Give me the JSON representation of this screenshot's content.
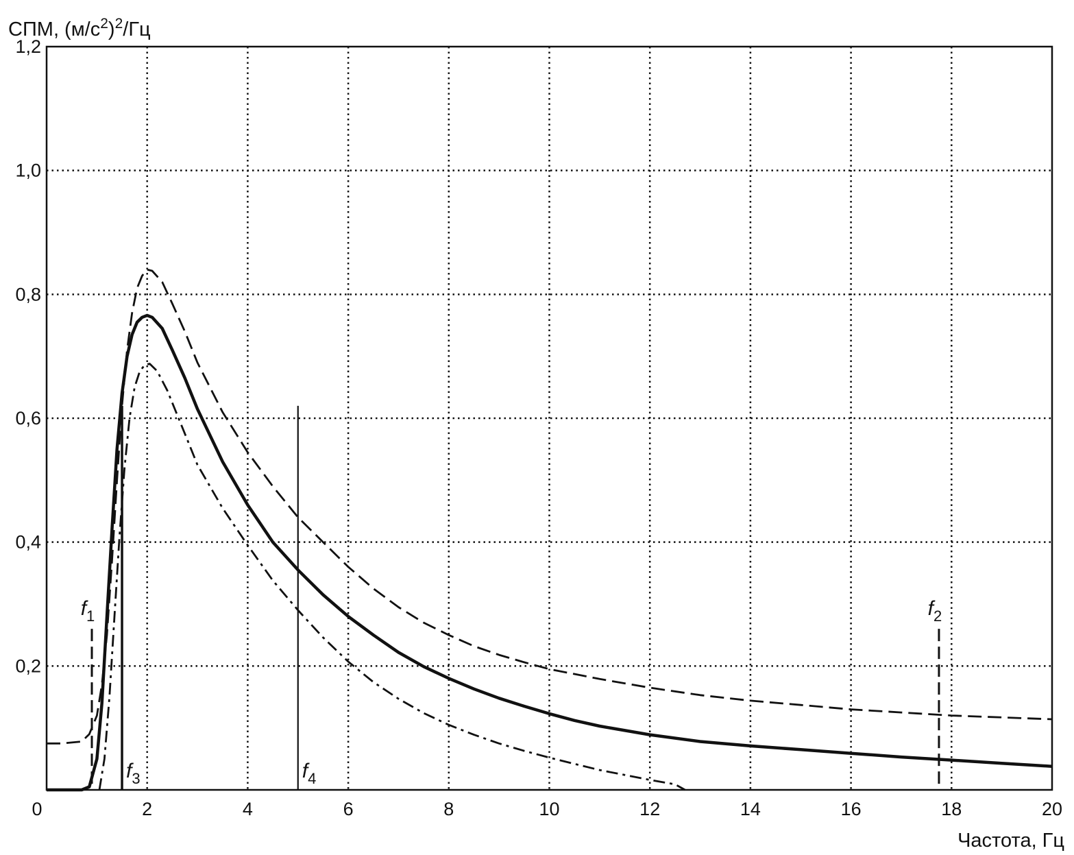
{
  "chart_data": {
    "type": "line",
    "ylabel_main": "СПМ, (м/с",
    "ylabel_sup1": "2",
    "ylabel_mid": ")",
    "ylabel_sup2": "2",
    "ylabel_end": "/Гц",
    "xlabel": "Частота, Гц",
    "xlim": [
      0,
      20
    ],
    "ylim": [
      0,
      1.2
    ],
    "grid": true,
    "x_ticks": [
      {
        "value": 0,
        "label": "0"
      },
      {
        "value": 2,
        "label": "2"
      },
      {
        "value": 4,
        "label": "4"
      },
      {
        "value": 6,
        "label": "6"
      },
      {
        "value": 8,
        "label": "8"
      },
      {
        "value": 10,
        "label": "10"
      },
      {
        "value": 12,
        "label": "12"
      },
      {
        "value": 14,
        "label": "14"
      },
      {
        "value": 16,
        "label": "16"
      },
      {
        "value": 18,
        "label": "18"
      },
      {
        "value": 20,
        "label": "20"
      }
    ],
    "y_ticks": [
      {
        "value": 0.2,
        "label": "0,2"
      },
      {
        "value": 0.4,
        "label": "0,4"
      },
      {
        "value": 0.6,
        "label": "0,6"
      },
      {
        "value": 0.8,
        "label": "0,8"
      },
      {
        "value": 1.0,
        "label": "1,0"
      },
      {
        "value": 1.2,
        "label": "1,2"
      }
    ],
    "series": [
      {
        "style": "solid",
        "points": [
          [
            0,
            0.0
          ],
          [
            0.7,
            0.0
          ],
          [
            0.85,
            0.005
          ],
          [
            1.0,
            0.05
          ],
          [
            1.1,
            0.14
          ],
          [
            1.2,
            0.28
          ],
          [
            1.3,
            0.42
          ],
          [
            1.4,
            0.55
          ],
          [
            1.5,
            0.64
          ],
          [
            1.6,
            0.7
          ],
          [
            1.7,
            0.735
          ],
          [
            1.8,
            0.755
          ],
          [
            1.9,
            0.763
          ],
          [
            2.0,
            0.766
          ],
          [
            2.1,
            0.763
          ],
          [
            2.3,
            0.745
          ],
          [
            2.5,
            0.71
          ],
          [
            2.75,
            0.665
          ],
          [
            3.0,
            0.615
          ],
          [
            3.5,
            0.53
          ],
          [
            4.0,
            0.46
          ],
          [
            4.5,
            0.4
          ],
          [
            5.0,
            0.355
          ],
          [
            5.5,
            0.315
          ],
          [
            6.0,
            0.28
          ],
          [
            6.5,
            0.25
          ],
          [
            7.0,
            0.222
          ],
          [
            7.5,
            0.199
          ],
          [
            8.0,
            0.18
          ],
          [
            8.5,
            0.163
          ],
          [
            9.0,
            0.148
          ],
          [
            9.5,
            0.135
          ],
          [
            10.0,
            0.123
          ],
          [
            10.5,
            0.112
          ],
          [
            11.0,
            0.103
          ],
          [
            12.0,
            0.089
          ],
          [
            13.0,
            0.078
          ],
          [
            14.0,
            0.071
          ],
          [
            15.0,
            0.065
          ],
          [
            16.0,
            0.059
          ],
          [
            17.0,
            0.053
          ],
          [
            18.0,
            0.048
          ],
          [
            19.0,
            0.043
          ],
          [
            20.0,
            0.038
          ]
        ]
      },
      {
        "style": "dashed",
        "points": [
          [
            0,
            0.075
          ],
          [
            0.3,
            0.075
          ],
          [
            0.7,
            0.078
          ],
          [
            0.85,
            0.09
          ],
          [
            1.0,
            0.12
          ],
          [
            1.1,
            0.17
          ],
          [
            1.2,
            0.25
          ],
          [
            1.3,
            0.37
          ],
          [
            1.4,
            0.5
          ],
          [
            1.5,
            0.62
          ],
          [
            1.6,
            0.71
          ],
          [
            1.7,
            0.77
          ],
          [
            1.8,
            0.81
          ],
          [
            1.9,
            0.83
          ],
          [
            2.0,
            0.84
          ],
          [
            2.1,
            0.838
          ],
          [
            2.3,
            0.82
          ],
          [
            2.5,
            0.785
          ],
          [
            2.75,
            0.74
          ],
          [
            3.0,
            0.69
          ],
          [
            3.5,
            0.61
          ],
          [
            4.0,
            0.545
          ],
          [
            4.5,
            0.49
          ],
          [
            5.0,
            0.44
          ],
          [
            5.5,
            0.4
          ],
          [
            6.0,
            0.36
          ],
          [
            6.5,
            0.325
          ],
          [
            7.0,
            0.295
          ],
          [
            7.5,
            0.27
          ],
          [
            8.0,
            0.25
          ],
          [
            8.5,
            0.232
          ],
          [
            9.0,
            0.218
          ],
          [
            9.5,
            0.206
          ],
          [
            10.0,
            0.195
          ],
          [
            11.0,
            0.179
          ],
          [
            12.0,
            0.165
          ],
          [
            13.0,
            0.153
          ],
          [
            14.0,
            0.144
          ],
          [
            15.0,
            0.137
          ],
          [
            16.0,
            0.13
          ],
          [
            17.0,
            0.125
          ],
          [
            18.0,
            0.12
          ],
          [
            19.0,
            0.117
          ],
          [
            20.0,
            0.114
          ]
        ]
      },
      {
        "style": "dashdot",
        "points": [
          [
            1.05,
            0.0
          ],
          [
            1.15,
            0.05
          ],
          [
            1.25,
            0.15
          ],
          [
            1.35,
            0.28
          ],
          [
            1.45,
            0.41
          ],
          [
            1.55,
            0.52
          ],
          [
            1.65,
            0.6
          ],
          [
            1.75,
            0.65
          ],
          [
            1.85,
            0.675
          ],
          [
            1.95,
            0.686
          ],
          [
            2.05,
            0.688
          ],
          [
            2.2,
            0.676
          ],
          [
            2.4,
            0.645
          ],
          [
            2.6,
            0.605
          ],
          [
            2.8,
            0.565
          ],
          [
            3.0,
            0.525
          ],
          [
            3.5,
            0.455
          ],
          [
            4.0,
            0.395
          ],
          [
            4.5,
            0.338
          ],
          [
            5.0,
            0.29
          ],
          [
            5.5,
            0.246
          ],
          [
            6.0,
            0.207
          ],
          [
            6.5,
            0.174
          ],
          [
            7.0,
            0.147
          ],
          [
            7.5,
            0.124
          ],
          [
            8.0,
            0.105
          ],
          [
            8.5,
            0.089
          ],
          [
            9.0,
            0.075
          ],
          [
            9.5,
            0.063
          ],
          [
            10.0,
            0.052
          ],
          [
            10.5,
            0.042
          ],
          [
            11.0,
            0.032
          ],
          [
            11.5,
            0.024
          ],
          [
            12.0,
            0.016
          ],
          [
            12.5,
            0.009
          ],
          [
            12.7,
            0.0
          ]
        ]
      }
    ],
    "markers": [
      {
        "label": "f",
        "sub": "1",
        "x": 0.9,
        "y_top": 0.26,
        "style": "dashed",
        "label_side": "top"
      },
      {
        "label": "f",
        "sub": "2",
        "x": 17.75,
        "y_top": 0.26,
        "style": "dashed",
        "label_side": "top"
      },
      {
        "label": "f",
        "sub": "3",
        "x": 1.5,
        "y_top": 0.62,
        "style": "solid",
        "label_side": "bottom"
      },
      {
        "label": "f",
        "sub": "4",
        "x": 5.0,
        "y_top": 0.62,
        "style": "thin",
        "label_side": "bottom"
      }
    ]
  }
}
